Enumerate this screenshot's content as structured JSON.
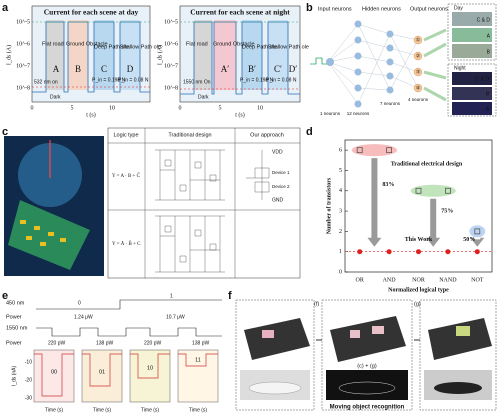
{
  "panels": {
    "a": {
      "label": "a",
      "day_title": "Current for each scene at day",
      "night_title": "Current for each scene at night",
      "y_label": "I_ds (A)",
      "y_ticks": [
        "10^-5",
        "10^-6",
        "10^-7",
        "10^-8"
      ],
      "x_ticks": [
        "0",
        "5",
        "10"
      ],
      "x_label": "t (s)",
      "scenes": [
        "Flat road",
        "Ground Obstacle",
        "Deep Path ole",
        "Shallow Path ole"
      ],
      "day_letters": [
        "A",
        "B",
        "C",
        "D"
      ],
      "night_letters": [
        "A′",
        "B′",
        "C′",
        "D′"
      ],
      "day_source": "532 nm on",
      "night_source": "1550 nm On",
      "dark": "Dark",
      "powers": [
        "P_in = 0.198 N",
        "P_in = 0.08 N"
      ]
    },
    "b": {
      "label": "b",
      "layers": [
        "Input neurons",
        "Hidden neurons",
        "Output neurons"
      ],
      "counts": [
        "1 neurons",
        "12 neurons",
        "7 neurons",
        "4 neurons"
      ],
      "outputs": [
        "①",
        "②",
        "③",
        "④"
      ],
      "day": "Day",
      "night": "Night",
      "day_classes": [
        "C & D",
        "A",
        "B"
      ],
      "night_classes": [
        "C′ & D′",
        "B′",
        "A′"
      ]
    },
    "c": {
      "label": "c",
      "headers": [
        "Logic type",
        "Traditional design",
        "Our approach"
      ],
      "logic": [
        "Y = A · B + C̄",
        "Y = Ā · B̄ + C"
      ],
      "device": [
        "VDD",
        "Device 1",
        "Device 2",
        "GND"
      ]
    },
    "e": {
      "label": "e",
      "rows": [
        "450 nm",
        "Power",
        "1550 nm"
      ],
      "states": [
        "0",
        "1"
      ],
      "powers_450": [
        "1.24 μW",
        "10.7 μW"
      ],
      "powers_1550": [
        "220 pW",
        "138 pW",
        "220 pW",
        "138 pW"
      ],
      "codes": [
        "00",
        "01",
        "10",
        "11"
      ],
      "y_label": "I_ds (nA)",
      "y_ticks": [
        "-10",
        "-20",
        "-30"
      ],
      "time_label": "Time (s)"
    },
    "f": {
      "label": "f",
      "tags": [
        "(f)",
        "(c) + (g)",
        "(g)"
      ],
      "caption": "Moving object recognition"
    }
  },
  "chart_data": {
    "type": "scatter",
    "label": "d",
    "categories": [
      "OR",
      "AND",
      "NOR",
      "NAND",
      "NOT"
    ],
    "series": [
      {
        "name": "Traditional electrical design",
        "color": "#555555",
        "values": [
          6,
          6,
          4,
          4,
          2
        ]
      },
      {
        "name": "This Work",
        "color": "#e02020",
        "values": [
          1,
          1,
          1,
          1,
          1
        ]
      }
    ],
    "ylim": [
      0,
      6.5
    ],
    "yticks": [
      0,
      1,
      2,
      3,
      4,
      5,
      6
    ],
    "y_label": "Number of transistors",
    "x_label": "Normalized logical type",
    "annotations": [
      "83%",
      "75%",
      "50%"
    ]
  }
}
